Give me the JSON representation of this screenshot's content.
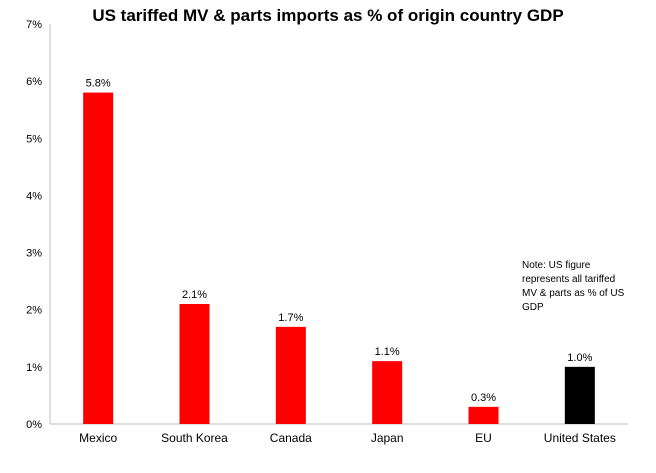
{
  "chart_data": {
    "type": "bar",
    "title": "US tariffed MV & parts imports as % of origin country GDP",
    "xlabel": "",
    "ylabel": "",
    "ylim": [
      0,
      7
    ],
    "y_ticks": [
      "0%",
      "1%",
      "2%",
      "3%",
      "4%",
      "5%",
      "6%",
      "7%"
    ],
    "grid": false,
    "categories": [
      "Mexico",
      "South Korea",
      "Canada",
      "Japan",
      "EU",
      "United States"
    ],
    "values": [
      5.8,
      2.1,
      1.7,
      1.1,
      0.3,
      1.0
    ],
    "data_labels": [
      "5.8%",
      "2.1%",
      "1.7%",
      "1.1%",
      "0.3%",
      "1.0%"
    ],
    "bar_colors": [
      "#ff0000",
      "#ff0000",
      "#ff0000",
      "#ff0000",
      "#ff0000",
      "#000000"
    ],
    "note": "Note: US figure represents all tariffed MV & parts as % of US GDP"
  }
}
